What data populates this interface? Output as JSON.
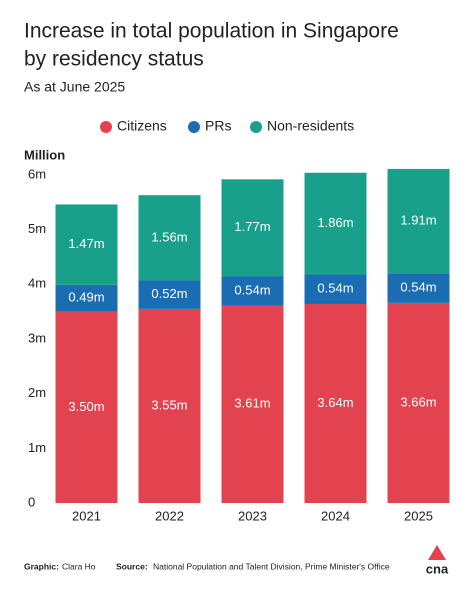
{
  "chart_data": {
    "type": "stacked-bar",
    "title_lines": [
      "Increase in total population in Singapore",
      "by residency status"
    ],
    "subtitle": "As at June 2025",
    "y_label": "Million",
    "categories": [
      "2021",
      "2022",
      "2023",
      "2024",
      "2025"
    ],
    "series": [
      {
        "name": "Citizens",
        "color": "#e2434f",
        "values": [
          3.5,
          3.55,
          3.61,
          3.64,
          3.66
        ],
        "value_labels": [
          "3.50m",
          "3.55m",
          "3.61m",
          "3.64m",
          "3.66m"
        ]
      },
      {
        "name": "PRs",
        "color": "#1b6db3",
        "values": [
          0.49,
          0.52,
          0.54,
          0.54,
          0.54
        ],
        "value_labels": [
          "0.49m",
          "0.52m",
          "0.54m",
          "0.54m",
          "0.54m"
        ]
      },
      {
        "name": "Non-residents",
        "color": "#18a08b",
        "values": [
          1.47,
          1.56,
          1.77,
          1.86,
          1.91
        ],
        "value_labels": [
          "1.47m",
          "1.56m",
          "1.77m",
          "1.86m",
          "1.91m"
        ]
      }
    ],
    "ylim": [
      0,
      6.2
    ],
    "yticks": [
      0,
      {
        "value": 1,
        "label": "1m"
      },
      {
        "value": 2,
        "label": "2m"
      },
      {
        "value": 3,
        "label": "3m"
      },
      {
        "value": 4,
        "label": "4m"
      },
      {
        "value": 5,
        "label": "5m"
      },
      {
        "value": 6,
        "label": "6m"
      }
    ],
    "grid": false,
    "legend": "top",
    "footer": {
      "graphic_label": "Graphic:",
      "graphic": "Clara Ho",
      "source_label": "Source:",
      "source": "National Population and Talent Division, Prime Minister's Office"
    },
    "logo": "cna"
  }
}
